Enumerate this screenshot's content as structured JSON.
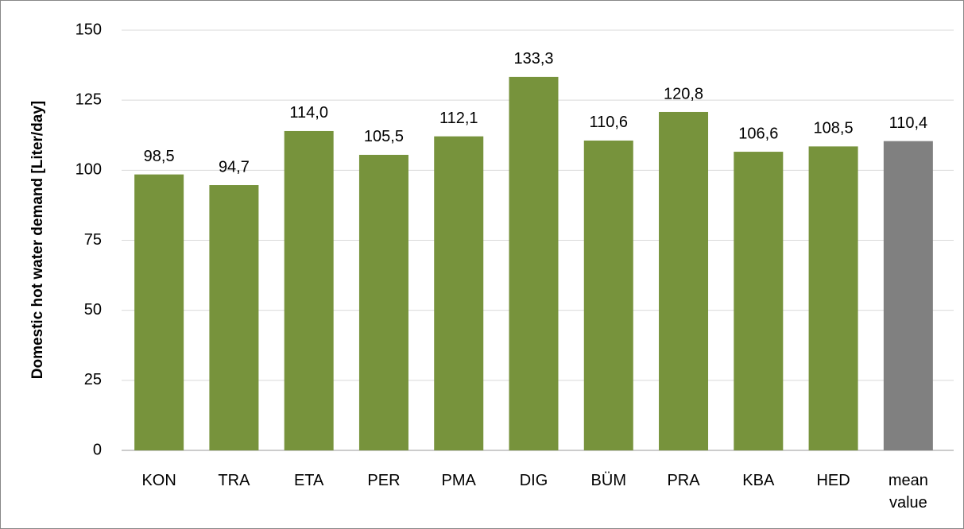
{
  "chart_data": {
    "type": "bar",
    "y_label": "Domestic hot water demand [Liter/day]",
    "categories": [
      "KON",
      "TRA",
      "ETA",
      "PER",
      "PMA",
      "DIG",
      "BÜM",
      "PRA",
      "KBA",
      "HED",
      "mean value"
    ],
    "values": [
      98.5,
      94.7,
      114.0,
      105.5,
      112.1,
      133.3,
      110.6,
      120.8,
      106.6,
      108.5,
      110.4
    ],
    "value_labels": [
      "98,5",
      "94,7",
      "114,0",
      "105,5",
      "112,1",
      "133,3",
      "110,6",
      "120,8",
      "106,6",
      "108,5",
      "110,4"
    ],
    "colors": [
      "#77933c",
      "#77933c",
      "#77933c",
      "#77933c",
      "#77933c",
      "#77933c",
      "#77933c",
      "#77933c",
      "#77933c",
      "#77933c",
      "#808080"
    ],
    "ylim": [
      0,
      150
    ],
    "yticks": [
      0,
      25,
      50,
      75,
      100,
      125,
      150
    ],
    "grid": true
  }
}
